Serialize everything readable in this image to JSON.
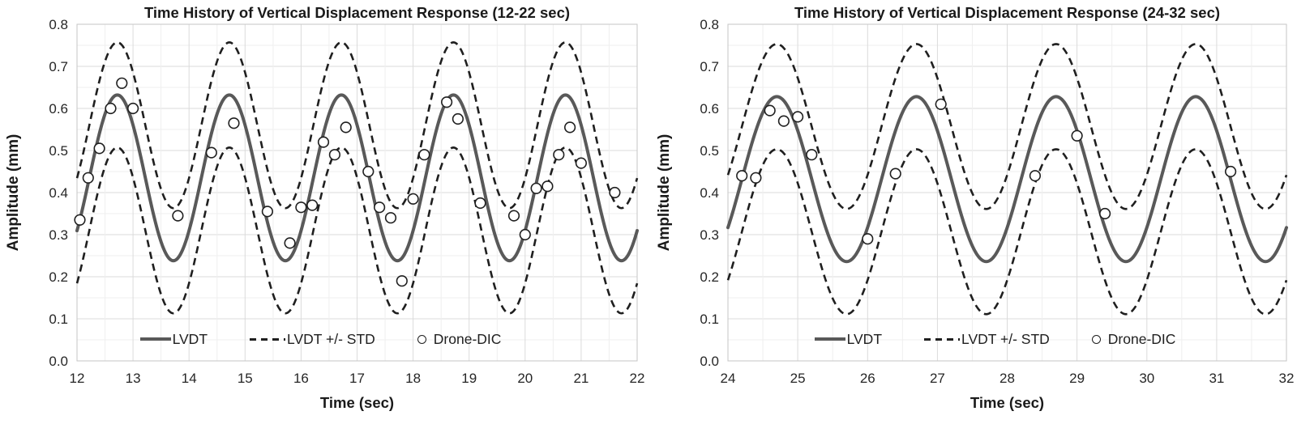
{
  "colors": {
    "background": "#ffffff",
    "lvdt_line": "#595959",
    "std_line": "#1f1f1f",
    "marker_stroke": "#1f1f1f",
    "marker_fill": "#ffffff",
    "grid_minor": "#efefef",
    "grid_major": "#dbdbdb",
    "plot_border": "#c6c6c6",
    "text": "#262626"
  },
  "chart_data": [
    {
      "type": "line+scatter",
      "title": "Time History of Vertical Displacement Response (12-22 sec)",
      "xlabel": "Time (sec)",
      "ylabel": "Amplitude (mm)",
      "xlim": [
        12,
        22
      ],
      "ylim": [
        0.0,
        0.8
      ],
      "x_ticks": [
        12,
        13,
        14,
        15,
        16,
        17,
        18,
        19,
        20,
        21,
        22
      ],
      "y_ticks": [
        "0.0",
        "0.1",
        "0.2",
        "0.3",
        "0.4",
        "0.5",
        "0.6",
        "0.7",
        "0.8"
      ],
      "grid": {
        "x_minor_step": 0.5,
        "y_minor_step": 0.05,
        "x_major_step": 1,
        "y_major_step": 0.1
      },
      "legend_position": "inside-bottom-center",
      "series": [
        {
          "name": "LVDT",
          "type": "line",
          "style": "solid",
          "sine": {
            "mean": 0.435,
            "amplitude": 0.197,
            "period_sec": 2.0,
            "peak_at_sec": 12.72
          }
        },
        {
          "name": "LVDT +/- STD",
          "type": "band-lines",
          "style": "dashed",
          "offset": 0.125
        },
        {
          "name": "Drone-DIC",
          "type": "scatter",
          "marker": "open-circle",
          "points": [
            [
              12.05,
              0.335
            ],
            [
              12.2,
              0.435
            ],
            [
              12.4,
              0.505
            ],
            [
              12.6,
              0.6
            ],
            [
              12.8,
              0.66
            ],
            [
              13.0,
              0.6
            ],
            [
              13.8,
              0.345
            ],
            [
              14.4,
              0.495
            ],
            [
              14.8,
              0.565
            ],
            [
              15.4,
              0.355
            ],
            [
              15.8,
              0.28
            ],
            [
              16.0,
              0.365
            ],
            [
              16.2,
              0.37
            ],
            [
              16.4,
              0.52
            ],
            [
              16.6,
              0.49
            ],
            [
              16.8,
              0.555
            ],
            [
              17.2,
              0.45
            ],
            [
              17.4,
              0.365
            ],
            [
              17.6,
              0.34
            ],
            [
              17.8,
              0.19
            ],
            [
              18.0,
              0.385
            ],
            [
              18.2,
              0.49
            ],
            [
              18.6,
              0.615
            ],
            [
              18.8,
              0.575
            ],
            [
              19.2,
              0.375
            ],
            [
              19.8,
              0.345
            ],
            [
              20.0,
              0.3
            ],
            [
              20.2,
              0.41
            ],
            [
              20.4,
              0.415
            ],
            [
              20.6,
              0.49
            ],
            [
              20.8,
              0.555
            ],
            [
              21.0,
              0.47
            ],
            [
              21.6,
              0.4
            ]
          ]
        }
      ]
    },
    {
      "type": "line+scatter",
      "title": "Time History of Vertical Displacement Response (24-32 sec)",
      "xlabel": "Time (sec)",
      "ylabel": "Amplitude (mm)",
      "xlim": [
        24,
        32
      ],
      "ylim": [
        0.0,
        0.8
      ],
      "x_ticks": [
        24,
        25,
        26,
        27,
        28,
        29,
        30,
        31,
        32
      ],
      "y_ticks": [
        "0.0",
        "0.1",
        "0.2",
        "0.3",
        "0.4",
        "0.5",
        "0.6",
        "0.7",
        "0.8"
      ],
      "grid": {
        "x_minor_step": 0.5,
        "y_minor_step": 0.05,
        "x_major_step": 1,
        "y_major_step": 0.1
      },
      "legend_position": "inside-bottom-center",
      "series": [
        {
          "name": "LVDT",
          "type": "line",
          "style": "solid",
          "sine": {
            "mean": 0.432,
            "amplitude": 0.196,
            "period_sec": 2.0,
            "peak_at_sec": 24.7
          }
        },
        {
          "name": "LVDT +/- STD",
          "type": "band-lines",
          "style": "dashed",
          "offset": 0.125
        },
        {
          "name": "Drone-DIC",
          "type": "scatter",
          "marker": "open-circle",
          "points": [
            [
              24.2,
              0.44
            ],
            [
              24.4,
              0.435
            ],
            [
              24.6,
              0.595
            ],
            [
              24.8,
              0.57
            ],
            [
              25.0,
              0.58
            ],
            [
              25.2,
              0.49
            ],
            [
              26.0,
              0.29
            ],
            [
              26.4,
              0.445
            ],
            [
              27.05,
              0.61
            ],
            [
              28.4,
              0.44
            ],
            [
              29.0,
              0.535
            ],
            [
              29.4,
              0.35
            ],
            [
              31.2,
              0.45
            ]
          ]
        }
      ]
    }
  ]
}
